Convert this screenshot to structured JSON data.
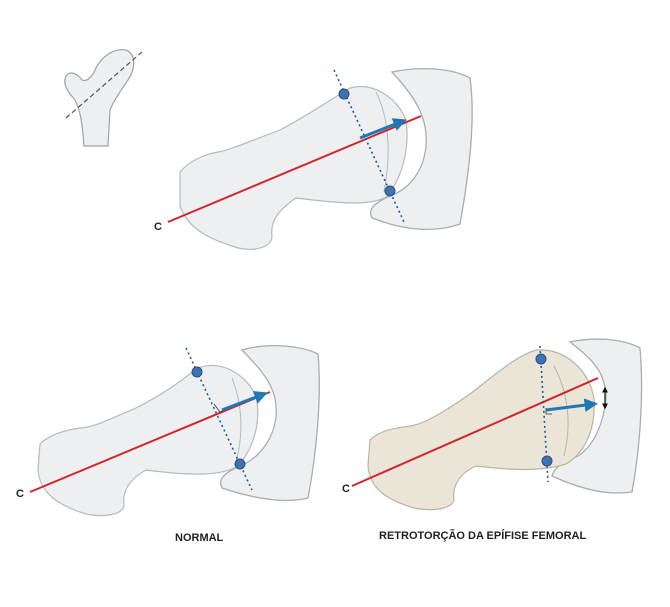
{
  "diagram": {
    "panels": [
      {
        "id": "top",
        "axis_label": "C"
      },
      {
        "id": "normal",
        "axis_label": "C",
        "caption": "NORMAL"
      },
      {
        "id": "retro",
        "axis_label": "C",
        "caption": "RETROTORÇÃO DA EPÍFISE FEMORAL"
      }
    ],
    "colors": {
      "bone_fill": "#eeeff0",
      "bone_stroke": "#b7b9bc",
      "epiphysis_fill": "#ebe5d7",
      "axis_line": "#d1242b",
      "arrow": "#1f78b4",
      "dotted_line": "#1a5f9a",
      "landmark_dot": "#3f72b2",
      "caption_text": "#222222"
    }
  }
}
